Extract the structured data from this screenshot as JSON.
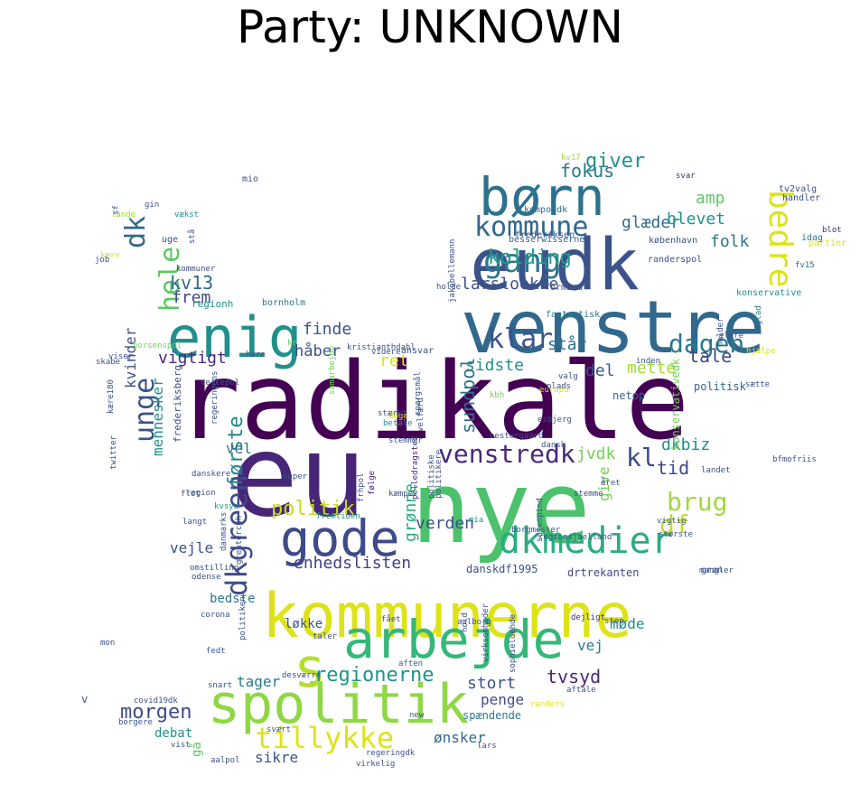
{
  "title": "Party: UNKNOWN",
  "palette": {
    "purple": "#440154",
    "indigo": "#3b528b",
    "blue": "#31688e",
    "teal": "#21908c",
    "green": "#35b779",
    "lime": "#8fd744",
    "yellow": "#dde318"
  },
  "words": [
    {
      "t": "radikale",
      "c": "#440154"
    },
    {
      "t": "eu",
      "c": "#482677"
    },
    {
      "t": "nye",
      "c": "#4cc26c"
    },
    {
      "t": "venstre",
      "c": "#31688e"
    },
    {
      "t": "eudk",
      "c": "#3b528b"
    },
    {
      "t": "kommunerne",
      "c": "#dde318"
    },
    {
      "t": "spolitik",
      "c": "#8fd744"
    },
    {
      "t": "arbejde",
      "c": "#35b779"
    },
    {
      "t": "børn",
      "c": "#2c728e"
    },
    {
      "t": "gode",
      "c": "#3e4a89"
    },
    {
      "t": "enig",
      "c": "#21908c"
    },
    {
      "t": "s",
      "c": "#b5de2b"
    },
    {
      "t": "dkmedier",
      "c": "#27ad81"
    },
    {
      "t": "bedre",
      "c": "#dde318"
    },
    {
      "t": "gang",
      "c": "#29798e"
    },
    {
      "t": "kommune",
      "c": "#31688e"
    },
    {
      "t": "dagen",
      "c": "#2a788e"
    },
    {
      "t": "klar",
      "c": "#3b528b"
    },
    {
      "t": "dkgreen",
      "c": "#3e4a89"
    },
    {
      "t": "unge",
      "c": "#3b528b"
    },
    {
      "t": "hele",
      "c": "#5ec962"
    },
    {
      "t": "venstredk",
      "c": "#482878"
    },
    {
      "t": "tillykke",
      "c": "#dde318"
    },
    {
      "t": "brug",
      "c": "#a0da39"
    },
    {
      "t": "df",
      "c": "#c2df23"
    },
    {
      "t": "dk",
      "c": "#31688e"
    },
    {
      "t": "første",
      "c": "#26818e"
    },
    {
      "t": "kl",
      "c": "#3e4a89"
    },
    {
      "t": "regionerne",
      "c": "#21918c"
    },
    {
      "t": "politik",
      "c": "#c2df23"
    },
    {
      "t": "morgen",
      "c": "#3e4a89"
    },
    {
      "t": "verden",
      "c": "#3b528b"
    },
    {
      "t": "tvsyd",
      "c": "#482878"
    },
    {
      "t": "enhedslisten",
      "c": "#433e85"
    },
    {
      "t": "sundpol",
      "c": "#2e6e8e"
    },
    {
      "t": "kolding",
      "c": "#1f9e89"
    },
    {
      "t": "kv13",
      "c": "#31688e"
    },
    {
      "t": "fokus",
      "c": "#2a788e"
    },
    {
      "t": "giver",
      "c": "#21908c"
    },
    {
      "t": "glæder",
      "c": "#31688e"
    },
    {
      "t": "blevet",
      "c": "#21918c"
    },
    {
      "t": "amp",
      "c": "#5ec962"
    },
    {
      "t": "folk",
      "c": "#2a788e"
    },
    {
      "t": "tale",
      "c": "#3e4a89"
    },
    {
      "t": "står",
      "c": "#2c728e"
    },
    {
      "t": "sidste",
      "c": "#21908c"
    },
    {
      "t": "ret",
      "c": "#dde318"
    },
    {
      "t": "del",
      "c": "#3b528b"
    },
    {
      "t": "mette",
      "c": "#a0da39"
    },
    {
      "t": "dkbiz",
      "c": "#21908c"
    },
    {
      "t": "tid",
      "c": "#3e4a89"
    },
    {
      "t": "jvdk",
      "c": "#73d056"
    },
    {
      "t": "give",
      "c": "#73d056"
    },
    {
      "t": "grønne",
      "c": "#27ad81"
    },
    {
      "t": "lars­loekke",
      "c": "#3b528b"
    },
    {
      "t": "frem",
      "c": "#3e4a89"
    },
    {
      "t": "finde",
      "c": "#3b528b"
    },
    {
      "t": "håber",
      "c": "#3b528b"
    },
    {
      "t": "vigtigt",
      "c": "#482878"
    },
    {
      "t": "kvinder",
      "c": "#3b528b"
    },
    {
      "t": "mennesker",
      "c": "#21918c"
    },
    {
      "t": "vel",
      "c": "#2a788e"
    },
    {
      "t": "vejle",
      "c": "#3b528b"
    },
    {
      "t": "tager",
      "c": "#2a788e"
    },
    {
      "t": "penge",
      "c": "#3e4a89"
    },
    {
      "t": "stort",
      "c": "#3b528b"
    },
    {
      "t": "vej",
      "c": "#2a788e"
    },
    {
      "t": "møde",
      "c": "#21918c"
    },
    {
      "t": "løkke",
      "c": "#3b528b"
    },
    {
      "t": "sikre",
      "c": "#3b528b"
    },
    {
      "t": "ønsker",
      "c": "#31688e"
    },
    {
      "t": "bedste",
      "c": "#2a788e"
    },
    {
      "t": "debat",
      "c": "#21918c"
    },
    {
      "t": "gå",
      "c": "#5ec962"
    },
    {
      "t": "spændende",
      "c": "#2a788e"
    },
    {
      "t": "danskdf1995",
      "c": "#3b528b"
    },
    {
      "t": "drtrekanten",
      "c": "#3e4a89"
    },
    {
      "t": "netop",
      "c": "#31688e"
    },
    {
      "t": "politisk",
      "c": "#31688e"
    },
    {
      "t": "konservativedk",
      "c": "#73d056"
    },
    {
      "t": "frederiksberg",
      "c": "#3b528b"
    },
    {
      "t": "regionh",
      "c": "#21918c"
    },
    {
      "t": "bornholm",
      "c": "#2a788e"
    },
    {
      "t": "fantastisk",
      "c": "#2a788e"
    },
    {
      "t": "formand",
      "c": "#3b528b"
    },
    {
      "t": "ansvar",
      "c": "#3b528b"
    },
    {
      "t": "besserwisserne",
      "c": "#31688e"
    },
    {
      "t": "frederiksen",
      "c": "#3b528b"
    },
    {
      "t": "kompoldk",
      "c": "#31688e"
    },
    {
      "t": "københavn",
      "c": "#3b528b"
    },
    {
      "t": "randerspol",
      "c": "#3b528b"
    },
    {
      "t": "holder",
      "c": "#3b528b"
    },
    {
      "t": "konservative",
      "c": "#21918c"
    },
    {
      "t": "glad",
      "c": "#2a788e"
    },
    {
      "t": "partier",
      "c": "#dde318"
    },
    {
      "t": "fv15",
      "c": "#31688e"
    },
    {
      "t": "tv2valg",
      "c": "#3b528b"
    },
    {
      "t": "handler",
      "c": "#3b528b"
    },
    {
      "t": "idag",
      "c": "#2a788e"
    },
    {
      "t": "blot",
      "c": "#482878"
    },
    {
      "t": "svar",
      "c": "#482878"
    },
    {
      "t": "kv17",
      "c": "#a0da39"
    },
    {
      "t": "mio",
      "c": "#3b528b"
    },
    {
      "t": "sf",
      "c": "#3b528b"
    },
    {
      "t": "gin",
      "c": "#3b528b"
    },
    {
      "t": "lande",
      "c": "#a0da39"
    },
    {
      "t": "vækst",
      "c": "#21918c"
    },
    {
      "t": "uge",
      "c": "#3b528b"
    },
    {
      "t": "kære",
      "c": "#dde318"
    },
    {
      "t": "job",
      "c": "#3b528b"
    },
    {
      "t": "kommuner",
      "c": "#3e4a89"
    },
    {
      "t": "horsenspol",
      "c": "#73d056"
    },
    {
      "t": "viser",
      "c": "#3b528b"
    },
    {
      "t": "høre",
      "c": "#3b528b"
    },
    {
      "t": "skabe",
      "c": "#3b528b"
    },
    {
      "t": "kr",
      "c": "#73d056"
    },
    {
      "t": "kristianthdahl",
      "c": "#3b528b"
    },
    {
      "t": "videre",
      "c": "#3b528b"
    },
    {
      "t": "vejlepol",
      "c": "#3b528b"
    },
    {
      "t": "samarbejde",
      "c": "#73d056"
    },
    {
      "t": "regeringens",
      "c": "#3b528b"
    },
    {
      "t": "twitter",
      "c": "#3b528b"
    },
    {
      "t": "danskere",
      "c": "#3b528b"
    },
    {
      "t": "flot",
      "c": "#3b528b"
    },
    {
      "t": "kvsyd",
      "c": "#21918c"
    },
    {
      "t": "langt",
      "c": "#3b528b"
    },
    {
      "t": "danmarks",
      "c": "#3b528b"
    },
    {
      "t": "greatercph",
      "c": "#3b528b"
    },
    {
      "t": "omstilling",
      "c": "#3b528b"
    },
    {
      "t": "odense",
      "c": "#3b528b"
    },
    {
      "t": "super",
      "c": "#3b528b"
    },
    {
      "t": "fremtiden",
      "c": "#21918c"
    },
    {
      "t": "pelledragsted",
      "c": "#482878"
    },
    {
      "t": "kæmpe",
      "c": "#3b528b"
    },
    {
      "t": "følge",
      "c": "#482878"
    },
    {
      "t": "frhpol",
      "c": "#3b528b"
    },
    {
      "t": "dage",
      "c": "#dde318"
    },
    {
      "t": "stemmer",
      "c": "#3b528b"
    },
    {
      "t": "oestergaard",
      "c": "#3b528b"
    },
    {
      "t": "stærkt",
      "c": "#3b528b"
    },
    {
      "t": "betale",
      "c": "#21918c"
    },
    {
      "t": "kbh",
      "c": "#73d056"
    },
    {
      "t": "europa",
      "c": "#dde318"
    },
    {
      "t": "plads",
      "c": "#3b528b"
    },
    {
      "t": "esbjerg",
      "c": "#3b528b"
    },
    {
      "t": "stemme",
      "c": "#3b528b"
    },
    {
      "t": "året",
      "c": "#3b528b"
    },
    {
      "t": "mia",
      "c": "#21918c"
    },
    {
      "t": "borgmester",
      "c": "#3b528b"
    },
    {
      "t": "sorenpind",
      "c": "#3b528b"
    },
    {
      "t": "regionsjaelland",
      "c": "#3b528b"
    },
    {
      "t": "vigtig",
      "c": "#3b528b"
    },
    {
      "t": "største",
      "c": "#3b528b"
    },
    {
      "t": "mangler",
      "c": "#3b528b"
    },
    {
      "t": "grøn",
      "c": "#3b528b"
    },
    {
      "t": "corona",
      "c": "#3b528b"
    },
    {
      "t": "fået",
      "c": "#3b528b"
    },
    {
      "t": "aalborg",
      "c": "#3b528b"
    },
    {
      "t": "dejligt",
      "c": "#482878"
    },
    {
      "t": "stop",
      "c": "#3b528b"
    },
    {
      "t": "fedt",
      "c": "#3b528b"
    },
    {
      "t": "taler",
      "c": "#3b528b"
    },
    {
      "t": "mon",
      "c": "#3b528b"
    },
    {
      "t": "desværre",
      "c": "#3b528b"
    },
    {
      "t": "snart",
      "c": "#3b528b"
    },
    {
      "t": "aften",
      "c": "#3b528b"
    },
    {
      "t": "aftale",
      "c": "#3b528b"
    },
    {
      "t": "covid19dk",
      "c": "#3b528b"
    },
    {
      "t": "borgere",
      "c": "#3b528b"
    },
    {
      "t": "new",
      "c": "#3b528b"
    },
    {
      "t": "randers",
      "c": "#dde318"
    },
    {
      "t": "vist",
      "c": "#3b528b"
    },
    {
      "t": "svært",
      "c": "#3b528b"
    },
    {
      "t": "aalpol",
      "c": "#3b528b"
    },
    {
      "t": "regeringdk",
      "c": "#3b528b"
    },
    {
      "t": "virkelig",
      "c": "#3b528b"
    },
    {
      "t": "v",
      "c": "#3b528b"
    },
    {
      "t": "valg",
      "c": "#3b528b"
    },
    {
      "t": "inden",
      "c": "#3b528b"
    },
    {
      "t": "hjælpe",
      "c": "#dde318"
    },
    {
      "t": "sætte",
      "c": "#3b528b"
    },
    {
      "t": "ældre",
      "c": "#3b528b"
    },
    {
      "t": "holde",
      "c": "#3b528b"
    },
    {
      "t": "jakobellemann",
      "c": "#3b528b"
    },
    {
      "t": "dansk",
      "c": "#3b528b"
    },
    {
      "t": "politiske",
      "c": "#3b528b"
    },
    {
      "t": "politikere",
      "c": "#3b528b"
    },
    {
      "t": "hold",
      "c": "#3b528b"
    },
    {
      "t": "virksomheder",
      "c": "#3b528b"
    },
    {
      "t": "sophieloehde",
      "c": "#3b528b"
    },
    {
      "t": "spørgsmål",
      "c": "#3b528b"
    },
    {
      "t": "velfærd",
      "c": "#3b528b"
    },
    {
      "t": "lars",
      "c": "#3b528b"
    },
    {
      "t": "bfmofriis",
      "c": "#3b528b"
    },
    {
      "t": "landet",
      "c": "#3b528b"
    },
    {
      "t": "region",
      "c": "#3b528b"
    },
    {
      "t": "politiken",
      "c": "#3b528b"
    },
    {
      "t": "kære180",
      "c": "#3b528b"
    },
    {
      "t": "stå",
      "c": "#3b528b"
    }
  ]
}
